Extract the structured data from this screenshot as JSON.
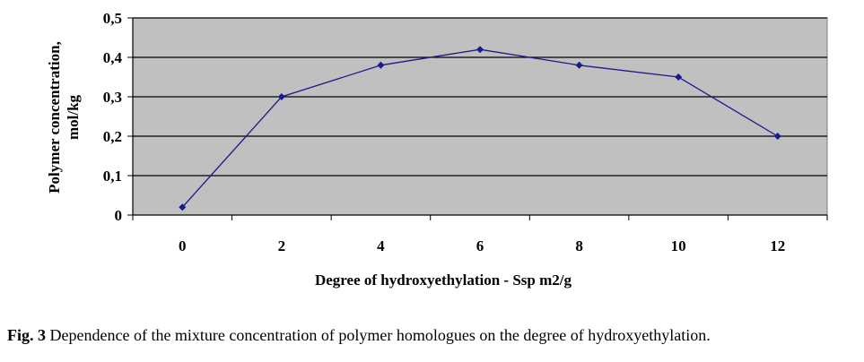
{
  "chart_data": {
    "type": "line",
    "title": "",
    "xlabel": "Degree of hydroxyethylation - Ssp m2/g",
    "ylabel_line1": "Polymer concentration,",
    "ylabel_line2": "mol/kg",
    "x": [
      0,
      2,
      4,
      6,
      8,
      10,
      12
    ],
    "x_tick_labels": [
      "0",
      "2",
      "4",
      "6",
      "8",
      "10",
      "12"
    ],
    "y_tick_labels": [
      "0",
      "0,1",
      "0,2",
      "0,3",
      "0,4",
      "0,5"
    ],
    "ylim": [
      0,
      0.5
    ],
    "series": [
      {
        "values": [
          0.02,
          0.3,
          0.38,
          0.42,
          0.38,
          0.35,
          0.2
        ],
        "color": "#1a1a8c"
      }
    ],
    "grid": true,
    "plot_background": "#c0c0c0"
  },
  "caption": {
    "label": "Fig. 3",
    "text": " Dependence of the mixture concentration of polymer homologues on the degree of hydroxyethylation."
  }
}
